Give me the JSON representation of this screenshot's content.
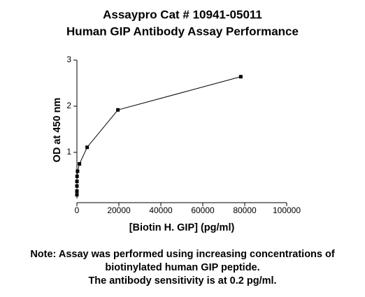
{
  "chart_data": {
    "type": "line",
    "title": [
      "Assaypro Cat # 10941-05011",
      "Human GIP Antibody Assay Performance"
    ],
    "x_label": "[Biotin H. GIP] (pg/ml)",
    "y_label": "OD at 450 nm",
    "notes": [
      "Note: Assay was performed using increasing concentrations of",
      "biotinylated human GIP peptide.",
      "The antibody sensitivity is at 0.2 pg/ml."
    ],
    "x": [
      0,
      1.2,
      4.8,
      19,
      76,
      305,
      1221,
      4883,
      19531,
      78125
    ],
    "series": [
      {
        "color": "#000000",
        "values": [
          0.08,
          0.16,
          0.27,
          0.37,
          0.48,
          0.59,
          0.75,
          1.11,
          1.92,
          2.64
        ]
      }
    ],
    "xlim": [
      0,
      100000
    ],
    "xticks": [
      0,
      20000,
      40000,
      60000,
      80000,
      100000
    ],
    "ylim": [
      0,
      3
    ],
    "yticks": [
      1,
      2,
      3
    ]
  }
}
